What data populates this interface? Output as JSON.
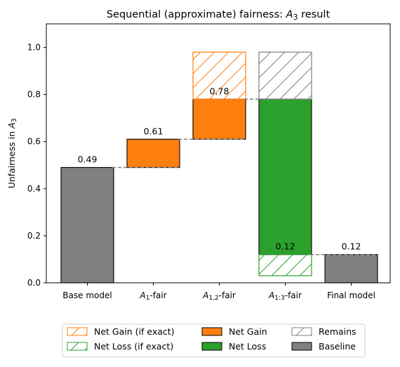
{
  "chart_data": {
    "type": "bar",
    "subtype": "waterfall",
    "title_parts": [
      {
        "t": "Sequential (approximate) fairness: ",
        "sub": "",
        "i": false
      },
      {
        "t": "A",
        "sub": "3",
        "i": true
      },
      {
        "t": " result",
        "sub": "",
        "i": false
      }
    ],
    "ylabel_parts": [
      {
        "t": "Unfairness in ",
        "sub": "",
        "i": false
      },
      {
        "t": "A",
        "sub": "3",
        "i": true
      }
    ],
    "ylim": [
      0.0,
      1.1
    ],
    "yticks": [
      0.0,
      0.2,
      0.4,
      0.6,
      0.8,
      1.0
    ],
    "ytick_labels": [
      "0.0",
      "0.2",
      "0.4",
      "0.6",
      "0.8",
      "1.0"
    ],
    "categories": [
      {
        "parts": [
          {
            "t": "Base model",
            "sub": "",
            "i": false
          }
        ]
      },
      {
        "parts": [
          {
            "t": "A",
            "sub": "1",
            "i": true
          },
          {
            "t": "-fair",
            "sub": "",
            "i": false
          }
        ]
      },
      {
        "parts": [
          {
            "t": "A",
            "sub": "1,2",
            "i": true
          },
          {
            "t": "-fair",
            "sub": "",
            "i": false
          }
        ]
      },
      {
        "parts": [
          {
            "t": "A",
            "sub": "1:3",
            "i": true
          },
          {
            "t": "-fair",
            "sub": "",
            "i": false
          }
        ]
      },
      {
        "parts": [
          {
            "t": "Final model",
            "sub": "",
            "i": false
          }
        ]
      }
    ],
    "bars": [
      {
        "cat": 0,
        "bottom": 0.0,
        "top": 0.49,
        "kind": "Baseline"
      },
      {
        "cat": 1,
        "bottom": 0.49,
        "top": 0.61,
        "kind": "Net Gain"
      },
      {
        "cat": 2,
        "bottom": 0.61,
        "top": 0.78,
        "kind": "Net Gain"
      },
      {
        "cat": 2,
        "bottom": 0.78,
        "top": 0.98,
        "kind": "Net Gain (if exact)"
      },
      {
        "cat": 3,
        "bottom": 0.12,
        "top": 0.78,
        "kind": "Net Loss"
      },
      {
        "cat": 3,
        "bottom": 0.78,
        "top": 0.98,
        "kind": "Remains"
      },
      {
        "cat": 3,
        "bottom": 0.03,
        "top": 0.12,
        "kind": "Net Loss (if exact)"
      },
      {
        "cat": 4,
        "bottom": 0.0,
        "top": 0.12,
        "kind": "Baseline"
      }
    ],
    "value_labels": [
      {
        "cat": 0,
        "value": 0.49,
        "text": "0.49"
      },
      {
        "cat": 1,
        "value": 0.61,
        "text": "0.61"
      },
      {
        "cat": 2,
        "value": 0.78,
        "text": "0.78"
      },
      {
        "cat": 3,
        "value": 0.12,
        "text": "0.12"
      },
      {
        "cat": 4,
        "value": 0.12,
        "text": "0.12"
      }
    ],
    "connectors": [
      {
        "from": 0,
        "to": 1,
        "value": 0.49
      },
      {
        "from": 1,
        "to": 2,
        "value": 0.61
      },
      {
        "from": 2,
        "to": 3,
        "value": 0.78
      },
      {
        "from": 3,
        "to": 4,
        "value": 0.12
      }
    ],
    "legend": {
      "placement": "bottom-center",
      "columns": 3,
      "entries": [
        {
          "label": "Net Gain (if exact)",
          "kind": "Net Gain (if exact)"
        },
        {
          "label": "Net Loss (if exact)",
          "kind": "Net Loss (if exact)"
        },
        {
          "label": "Net Gain",
          "kind": "Net Gain"
        },
        {
          "label": "Net Loss",
          "kind": "Net Loss"
        },
        {
          "label": "Remains",
          "kind": "Remains"
        },
        {
          "label": "Baseline",
          "kind": "Baseline"
        }
      ]
    },
    "styles": {
      "Baseline": {
        "fill": "#808080",
        "edge": "#000000",
        "hatch": false
      },
      "Net Gain": {
        "fill": "#ff7f0e",
        "edge": "#000000",
        "hatch": false
      },
      "Net Loss": {
        "fill": "#2ca02c",
        "edge": "#000000",
        "hatch": false
      },
      "Net Gain (if exact)": {
        "fill": "none",
        "edge": "#ff7f0e",
        "hatch": true
      },
      "Net Loss (if exact)": {
        "fill": "none",
        "edge": "#2ca02c",
        "hatch": true
      },
      "Remains": {
        "fill": "none",
        "edge": "#808080",
        "hatch": true
      }
    },
    "connector_color": "#808080",
    "grid": false
  }
}
